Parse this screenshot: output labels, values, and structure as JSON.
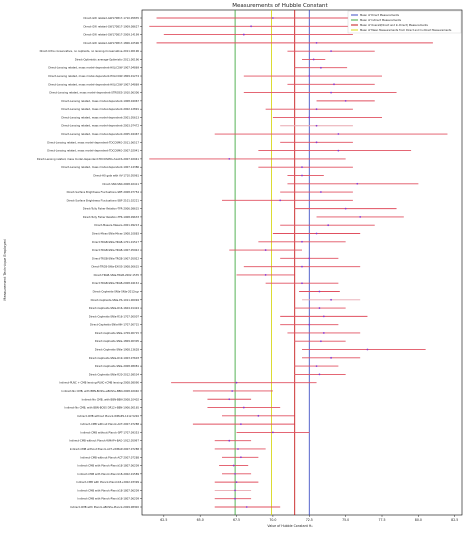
{
  "chart_data": {
    "type": "errorbar",
    "title": "Measurements of Hubble Constant",
    "xlabel": "Value of Hubble Constant H₀",
    "ylabel": "Measurement Technique Employed",
    "xlim": [
      61.0,
      83.0
    ],
    "xticks": [
      62.5,
      65.0,
      67.5,
      70.0,
      72.5,
      75.0,
      77.5,
      80.0,
      82.5
    ],
    "grid": false,
    "legend_position": "top-right",
    "legend": [
      {
        "label": "Mean of Direct Measurements",
        "color": "#2c3fc0",
        "x": 72.5
      },
      {
        "label": "Mean of Indirect Measurements",
        "color": "#2ca02c",
        "x": 67.4
      },
      {
        "label": "Mean of Overall(Direct and In-Direct) Measurements",
        "color": "#c00000",
        "x": 71.5
      },
      {
        "label": "Mean of Mean Measurements from Direct and In-Direct Measurements",
        "color": "#d4d400",
        "x": 69.9
      }
    ],
    "colors": {
      "errorbar": "#e05060",
      "errorbar_light": "#e8a8b0",
      "point": "#8a3ad0"
    },
    "series": [
      {
        "label": "Direct-GW related-GW170817-1710.05835",
        "value": 70.0,
        "lo": 62.0,
        "hi": 82.0,
        "light": false
      },
      {
        "label": "Direct-GW related-GW170817-1909.08627",
        "value": 68.5,
        "lo": 61.5,
        "hi": 78.0,
        "light": false
      },
      {
        "label": "Direct-GW related-GW170817-2009.14199",
        "value": 68.0,
        "lo": 62.5,
        "hi": 75.5,
        "light": false
      },
      {
        "label": "Direct-GW related-GW170817-1806.10596",
        "value": 73.0,
        "lo": 62.0,
        "hi": 81.0,
        "light": false
      },
      {
        "label": "Direct-Ultra conservative, no cepheids, no lensing-Conservative-2011.00196",
        "value": 74.0,
        "lo": 71.0,
        "hi": 77.0,
        "light": false
      },
      {
        "label": "Direct-Optimistic average-Optimistic-2011.00196",
        "value": 72.8,
        "lo": 72.0,
        "hi": 73.6,
        "light": false
      },
      {
        "label": "Direct-Lensing related, mass model-dependent-H0LiCOW-1907.04869",
        "value": 73.3,
        "lo": 71.5,
        "hi": 75.1,
        "light": false
      },
      {
        "label": "Direct-Lensing related, mass model-dependent-H0LiCOW-1809.01274",
        "value": 72.5,
        "lo": 68.0,
        "hi": 77.5,
        "light": false
      },
      {
        "label": "Direct-Lensing related, mass model-dependent-H0LiCOW-1907.04869",
        "value": 74.2,
        "lo": 71.0,
        "hi": 77.0,
        "light": false
      },
      {
        "label": "Direct-Lensing related, mass model-dependent-STRIDES-1910.06306",
        "value": 74.0,
        "lo": 68.0,
        "hi": 78.5,
        "light": false
      },
      {
        "label": "Direct-Lensing related, mass model-dependent-1908.04967",
        "value": 75.0,
        "lo": 73.0,
        "hi": 77.0,
        "light": false
      },
      {
        "label": "Direct-Lensing related, mass model-dependent-2002.12891",
        "value": 73.0,
        "lo": 69.5,
        "hi": 75.5,
        "light": false
      },
      {
        "label": "Direct-Lensing related, mass model-dependent-2001.05613",
        "value": 72.5,
        "lo": 70.0,
        "hi": 77.5,
        "light": false
      },
      {
        "label": "Direct-Lensing related, mass model-dependent-2003.07472",
        "value": 73.0,
        "lo": 70.5,
        "hi": 75.5,
        "light": true
      },
      {
        "label": "Direct-Lensing related, mass model-dependent-2005.04467",
        "value": 74.5,
        "lo": 66.0,
        "hi": 82.0,
        "light": false
      },
      {
        "label": "Direct-Lensing related, mass model-dependent-TDCOSMO-2011.06517",
        "value": 73.0,
        "lo": 70.5,
        "hi": 75.5,
        "light": false
      },
      {
        "label": "Direct-Lensing related, mass model-dependent-TDCOSMO-2007.02941",
        "value": 74.5,
        "lo": 69.0,
        "hi": 79.5,
        "light": false
      },
      {
        "label": "Direct-Lensing related, mass model-dependent-TDCOSMO+SLACS-2007.02941",
        "value": 67.0,
        "lo": 61.5,
        "hi": 75.0,
        "light": false
      },
      {
        "label": "Direct-Lensing related, mass model-dependent-1907.14386",
        "value": 72.0,
        "lo": 69.0,
        "hi": 75.5,
        "light": false
      },
      {
        "label": "Direct-H0 gala with AV-1710.05961",
        "value": 72.0,
        "lo": 71.0,
        "hi": 73.5,
        "light": false
      },
      {
        "label": "Direct-SNII-SNII-2008.02411",
        "value": 75.8,
        "lo": 71.0,
        "hi": 80.0,
        "light": false
      },
      {
        "label": "Direct-Surface Brightness Fluctuations-SBF-2008.07754",
        "value": 73.3,
        "lo": 70.5,
        "hi": 75.5,
        "light": false
      },
      {
        "label": "Direct-Surface Brightness Fluctuations-SBF-2101.02221",
        "value": 70.5,
        "lo": 66.5,
        "hi": 75.5,
        "light": false
      },
      {
        "label": "Direct-Tully Fisher Relation-TFR-2006.08615",
        "value": 75.0,
        "lo": 71.5,
        "hi": 78.5,
        "light": false
      },
      {
        "label": "Direct-Tully Fisher Relation-TFR-1908.09633",
        "value": 76.0,
        "lo": 73.0,
        "hi": 79.0,
        "light": false
      },
      {
        "label": "Direct-Masers-Masers-2001.09213",
        "value": 73.8,
        "lo": 70.5,
        "hi": 77.0,
        "light": false
      },
      {
        "label": "Direct-Miras-SNIa-Miras-1908.10883",
        "value": 73.0,
        "lo": 70.0,
        "hi": 76.0,
        "light": false
      },
      {
        "label": "Direct-TRGB-SNIa-TRGB-1701.01517",
        "value": 72.0,
        "lo": 69.0,
        "hi": 75.0,
        "light": false
      },
      {
        "label": "Direct-TRGB-SNIa-TRGB-1907.05922",
        "value": 69.5,
        "lo": 67.0,
        "hi": 72.0,
        "light": false
      },
      {
        "label": "Direct-TRGB-SNIa-TRGB-1907.05922",
        "value": 72.5,
        "lo": 70.5,
        "hi": 74.5,
        "light": false
      },
      {
        "label": "Direct-TRGB-SNIa-EXISS-1908.00615",
        "value": 72.0,
        "lo": 68.0,
        "hi": 76.0,
        "light": false
      },
      {
        "label": "Direct-TRGB-SNIa-TRGB-2002.1535",
        "value": 69.5,
        "lo": 67.5,
        "hi": 71.5,
        "light": false
      },
      {
        "label": "Direct-TRGB-SNIa-TRGB-2008.04152",
        "value": 72.0,
        "lo": 69.5,
        "hi": 74.5,
        "light": false
      },
      {
        "label": "Direct-Cepheids-SNIa-SNIa-2012ngr",
        "value": 73.2,
        "lo": 71.8,
        "hi": 74.6,
        "light": false
      },
      {
        "label": "Direct-Cepheids-SNIa-PS-1011.00094",
        "value": 74.0,
        "lo": 72.0,
        "hi": 76.0,
        "light": true
      },
      {
        "label": "Direct-Cepheids-SNIa-R16-1604.01424",
        "value": 73.2,
        "lo": 71.5,
        "hi": 75.0,
        "light": false
      },
      {
        "label": "Direct-Cepheids-SNIa-R16-1707.00007",
        "value": 73.5,
        "lo": 70.5,
        "hi": 76.5,
        "light": false
      },
      {
        "label": "Direct-Cepheids-SNIa-NH-1707.00715",
        "value": 72.5,
        "lo": 70.5,
        "hi": 74.5,
        "light": false
      },
      {
        "label": "Direct-Cepheids-SNIa-1709.00715",
        "value": 73.5,
        "lo": 71.0,
        "hi": 76.0,
        "light": false
      },
      {
        "label": "Direct-Cepheids-SNIa-1809.00305",
        "value": 73.3,
        "lo": 71.5,
        "hi": 75.0,
        "light": false
      },
      {
        "label": "Direct-Cepheids-SNIa-1908.13628",
        "value": 76.5,
        "lo": 72.0,
        "hi": 80.5,
        "light": false
      },
      {
        "label": "Direct-Cepheids-SNIa-R19-1903.07603",
        "value": 74.0,
        "lo": 72.0,
        "hi": 76.0,
        "light": false
      },
      {
        "label": "Direct-Cepheids-SNIa-2008.08081",
        "value": 73.0,
        "lo": 71.5,
        "hi": 74.5,
        "light": false
      },
      {
        "label": "Direct-Cepheids-SNIa-R20-2012.08534",
        "value": 73.2,
        "lo": 71.5,
        "hi": 75.0,
        "light": false
      },
      {
        "label": "Indirect-PLNC + CMB lensing-PLNC+CMB lensing-2008.08090",
        "value": 67.5,
        "lo": 63.0,
        "hi": 73.0,
        "light": false
      },
      {
        "label": "Indirect-No CMB, with BBN-BOSS+eBOSS+BBN-2008.02040",
        "value": 67.2,
        "lo": 64.5,
        "hi": 70.0,
        "light": false
      },
      {
        "label": "Indirect-No CMB, with BBN-BBN-2008.10402",
        "value": 67.0,
        "lo": 65.5,
        "hi": 68.5,
        "light": false
      },
      {
        "label": "Indirect-No CMB, with BBN-BOSS DR12+BBN-1906.00165",
        "value": 68.0,
        "lo": 65.5,
        "hi": 70.5,
        "light": false
      },
      {
        "label": "Indirect-CMB without Planck-WMAP9-1212.5226",
        "value": 69.0,
        "lo": 66.5,
        "hi": 71.5,
        "light": false
      },
      {
        "label": "Indirect-CMB without Planck-ACT-2007.07288",
        "value": 67.8,
        "lo": 64.5,
        "hi": 71.5,
        "light": false
      },
      {
        "label": "Indirect-CMB without Planck-SPT-1707.09353",
        "value": 70.0,
        "lo": 67.5,
        "hi": 72.5,
        "light": false
      },
      {
        "label": "Indirect-CMB without Planck-WMAP+BAO-1912.05997",
        "value": 67.0,
        "lo": 66.0,
        "hi": 68.5,
        "light": false
      },
      {
        "label": "Indirect-CMB without Planck-ACT+WMAP-2007.07288",
        "value": 67.6,
        "lo": 66.0,
        "hi": 69.5,
        "light": false
      },
      {
        "label": "Indirect-CMB without Planck-ACT-2007.07288",
        "value": 67.8,
        "lo": 66.5,
        "hi": 69.0,
        "light": false
      },
      {
        "label": "Indirect-CMB with Planck-Planck18-1807.06209",
        "value": 67.3,
        "lo": 66.3,
        "hi": 68.3,
        "light": false
      },
      {
        "label": "Indirect-CMB with Planck-Planck18-2002.01589",
        "value": 67.4,
        "lo": 66.5,
        "hi": 68.5,
        "light": false
      },
      {
        "label": "Indirect-CMB with Planck-Planck18+2002.03399",
        "value": 67.5,
        "lo": 66.0,
        "hi": 69.0,
        "light": false
      },
      {
        "label": "Indirect-CMB with Planck-Planck18-1807.06209",
        "value": 67.4,
        "lo": 66.0,
        "hi": 68.5,
        "light": true
      },
      {
        "label": "Indirect-CMB with Planck-Planck18-1807.06209",
        "value": 67.4,
        "lo": 66.0,
        "hi": 68.5,
        "light": false
      },
      {
        "label": "Indirect-CMB with Planck-eBOSS+Planck-2009.08300",
        "value": 68.2,
        "lo": 66.0,
        "hi": 70.5,
        "light": false
      }
    ]
  }
}
